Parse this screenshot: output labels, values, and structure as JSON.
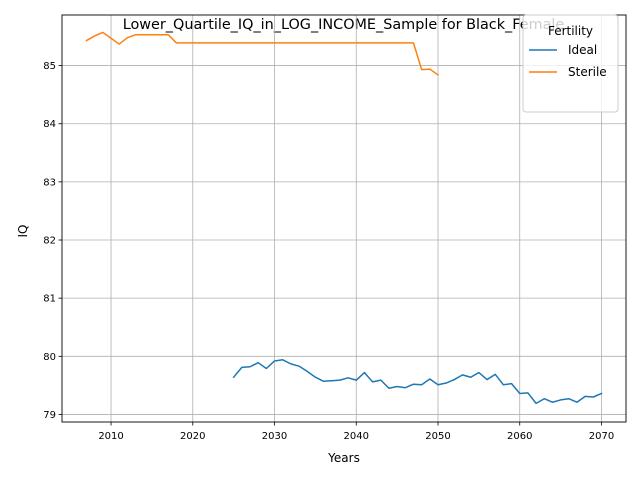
{
  "chart_data": {
    "type": "line",
    "title": "Lower_Quartile_IQ_in_LOG_INCOME_Sample for Black_Female",
    "xlabel": "Years",
    "ylabel": "IQ",
    "xlim": [
      2004,
      2073
    ],
    "ylim": [
      78.87,
      85.87
    ],
    "xticks": [
      2010,
      2020,
      2030,
      2040,
      2050,
      2060,
      2070
    ],
    "yticks": [
      79,
      80,
      81,
      82,
      83,
      84,
      85
    ],
    "grid": true,
    "legend": {
      "title": "Fertility",
      "placement": "top-right"
    },
    "series": [
      {
        "name": "Ideal",
        "color": "#1f77b4",
        "x": [
          2025,
          2026,
          2027,
          2028,
          2029,
          2030,
          2031,
          2032,
          2033,
          2034,
          2035,
          2036,
          2037,
          2038,
          2039,
          2040,
          2041,
          2042,
          2043,
          2044,
          2045,
          2046,
          2047,
          2048,
          2049,
          2050,
          2051,
          2052,
          2053,
          2054,
          2055,
          2056,
          2057,
          2058,
          2059,
          2060,
          2061,
          2062,
          2063,
          2064,
          2065,
          2066,
          2067,
          2068,
          2069,
          2070
        ],
        "y": [
          79.64,
          79.81,
          79.82,
          79.89,
          79.79,
          79.92,
          79.94,
          79.87,
          79.83,
          79.74,
          79.64,
          79.57,
          79.58,
          79.59,
          79.63,
          79.59,
          79.72,
          79.56,
          79.59,
          79.45,
          79.48,
          79.46,
          79.52,
          79.51,
          79.61,
          79.51,
          79.54,
          79.6,
          79.68,
          79.64,
          79.72,
          79.6,
          79.69,
          79.51,
          79.53,
          79.36,
          79.37,
          79.19,
          79.27,
          79.21,
          79.25,
          79.27,
          79.21,
          79.31,
          79.3,
          79.36
        ]
      },
      {
        "name": "Sterile",
        "color": "#ff7f0e",
        "x": [
          2007,
          2008,
          2009,
          2010,
          2011,
          2012,
          2013,
          2014,
          2015,
          2016,
          2017,
          2018,
          2019,
          2020,
          2021,
          2022,
          2023,
          2024,
          2025,
          2026,
          2027,
          2028,
          2029,
          2030,
          2031,
          2032,
          2033,
          2034,
          2035,
          2036,
          2037,
          2038,
          2039,
          2040,
          2041,
          2042,
          2043,
          2044,
          2045,
          2046,
          2047,
          2048,
          2049,
          2050
        ],
        "y": [
          85.43,
          85.51,
          85.57,
          85.47,
          85.37,
          85.48,
          85.53,
          85.53,
          85.53,
          85.53,
          85.53,
          85.39,
          85.39,
          85.39,
          85.39,
          85.39,
          85.39,
          85.39,
          85.39,
          85.39,
          85.39,
          85.39,
          85.39,
          85.39,
          85.39,
          85.39,
          85.39,
          85.39,
          85.39,
          85.39,
          85.39,
          85.39,
          85.39,
          85.39,
          85.39,
          85.39,
          85.39,
          85.39,
          85.39,
          85.39,
          85.39,
          84.93,
          84.94,
          84.84
        ]
      }
    ]
  }
}
